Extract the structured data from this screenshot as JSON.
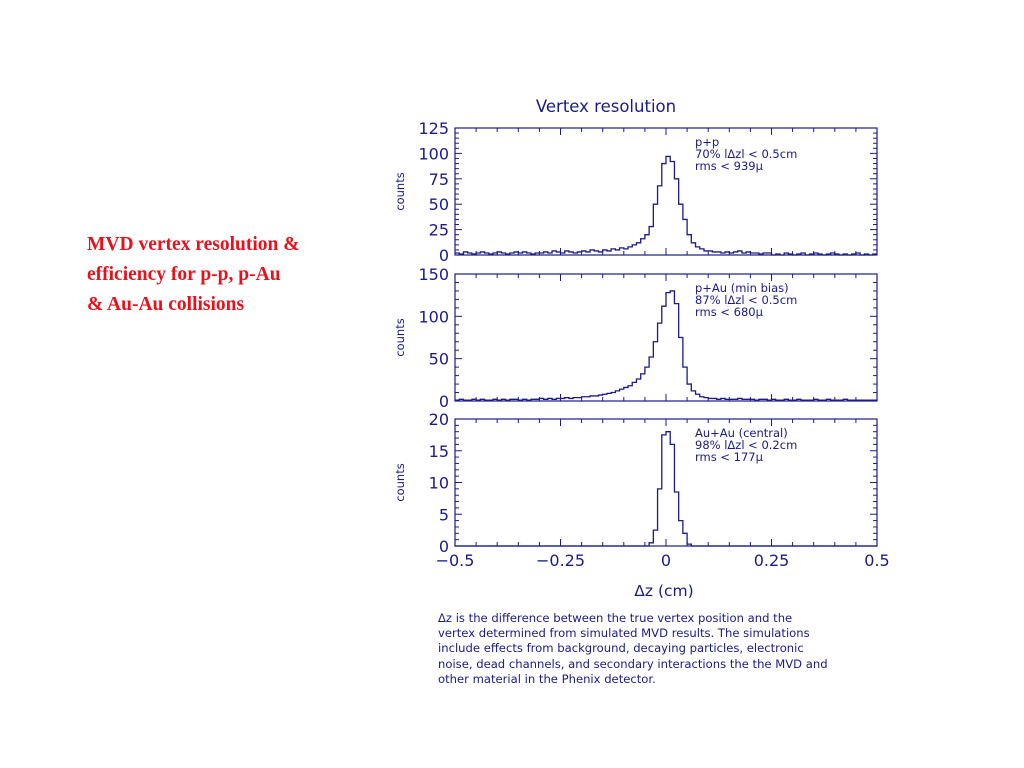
{
  "caption": {
    "lines": [
      "MVD vertex resolution &",
      "efficiency for p-p,  p-Au",
      "& Au-Au collisions"
    ],
    "color": "#e8111a"
  },
  "ink_color": "#1a1a8c",
  "description": {
    "lines": [
      "Δz is the difference between the true vertex position and the",
      "vertex determined from simulated MVD results. The simulations",
      "include effects from background, decaying particles, electronic",
      "noise, dead channels, and secondary interactions the the MVD and",
      "other material in the Phenix detector."
    ]
  },
  "chart_data": {
    "type": "line",
    "title": "Vertex resolution",
    "xlabel": "Δz (cm)",
    "xlim": [
      -0.5,
      0.5
    ],
    "xticks": [
      -0.5,
      -0.25,
      0,
      0.25,
      0.5
    ],
    "xtick_labels": [
      "−0.5",
      "−0.25",
      "0",
      "0.25",
      "0.5"
    ],
    "x": [
      -0.5,
      -0.49,
      -0.48,
      -0.47,
      -0.46,
      -0.45,
      -0.44,
      -0.43,
      -0.42,
      -0.41,
      -0.4,
      -0.39,
      -0.38,
      -0.37,
      -0.36,
      -0.35,
      -0.34,
      -0.33,
      -0.32,
      -0.31,
      -0.3,
      -0.29,
      -0.28,
      -0.27,
      -0.26,
      -0.25,
      -0.24,
      -0.23,
      -0.22,
      -0.21,
      -0.2,
      -0.19,
      -0.18,
      -0.17,
      -0.16,
      -0.15,
      -0.14,
      -0.13,
      -0.12,
      -0.11,
      -0.1,
      -0.09,
      -0.08,
      -0.07,
      -0.06,
      -0.05,
      -0.04,
      -0.03,
      -0.02,
      -0.01,
      0,
      0.01,
      0.02,
      0.03,
      0.04,
      0.05,
      0.06,
      0.07,
      0.08,
      0.09,
      0.1,
      0.11,
      0.12,
      0.13,
      0.14,
      0.15,
      0.16,
      0.17,
      0.18,
      0.19,
      0.2,
      0.21,
      0.22,
      0.23,
      0.24,
      0.25,
      0.26,
      0.27,
      0.28,
      0.29,
      0.3,
      0.31,
      0.32,
      0.33,
      0.34,
      0.35,
      0.36,
      0.37,
      0.38,
      0.39,
      0.4,
      0.41,
      0.42,
      0.43,
      0.44,
      0.45,
      0.46,
      0.47,
      0.48,
      0.49
    ],
    "panels": [
      {
        "ylabel": "counts",
        "ylim": [
          0,
          125
        ],
        "yticks": [
          0,
          25,
          50,
          75,
          100,
          125
        ],
        "legend": [
          "p+p",
          "70% lΔzl < 0.5cm",
          "rms < 939μ"
        ],
        "values": [
          2,
          1,
          3,
          2,
          1,
          2,
          3,
          2,
          1,
          2,
          3,
          2,
          1,
          2,
          3,
          2,
          3,
          2,
          1,
          2,
          2,
          3,
          2,
          4,
          3,
          2,
          4,
          3,
          2,
          3,
          4,
          3,
          5,
          4,
          3,
          5,
          4,
          6,
          5,
          7,
          6,
          8,
          10,
          12,
          16,
          20,
          28,
          50,
          68,
          90,
          97,
          92,
          75,
          50,
          35,
          20,
          12,
          8,
          6,
          4,
          4,
          3,
          3,
          2,
          3,
          2,
          3,
          4,
          2,
          3,
          2,
          2,
          1,
          2,
          2,
          0,
          1,
          0,
          2,
          1,
          0,
          1,
          2,
          0,
          1,
          2,
          1,
          0,
          1,
          2,
          1,
          0,
          1,
          0,
          1,
          2,
          0,
          1,
          0,
          1
        ]
      },
      {
        "ylabel": "counts",
        "ylim": [
          0,
          150
        ],
        "yticks": [
          0,
          50,
          100,
          150
        ],
        "legend": [
          "p+Au (min bias)",
          "87% lΔzl < 0.5cm",
          "rms < 680μ"
        ],
        "values": [
          1,
          2,
          1,
          1,
          2,
          1,
          2,
          1,
          1,
          2,
          1,
          2,
          1,
          2,
          2,
          1,
          2,
          1,
          2,
          2,
          3,
          2,
          3,
          2,
          3,
          3,
          4,
          3,
          4,
          4,
          5,
          5,
          6,
          6,
          7,
          8,
          9,
          10,
          12,
          14,
          16,
          18,
          22,
          26,
          32,
          40,
          52,
          70,
          92,
          112,
          128,
          130,
          115,
          75,
          40,
          20,
          12,
          8,
          5,
          4,
          3,
          3,
          2,
          3,
          2,
          2,
          2,
          3,
          2,
          2,
          2,
          1,
          2,
          2,
          1,
          2,
          1,
          1,
          2,
          1,
          1,
          2,
          1,
          1,
          1,
          2,
          1,
          1,
          2,
          1,
          1,
          1,
          2,
          1,
          1,
          1,
          1,
          1,
          1,
          1
        ]
      },
      {
        "ylabel": "counts",
        "ylim": [
          0,
          20
        ],
        "yticks": [
          0,
          5,
          10,
          15,
          20
        ],
        "legend": [
          "Au+Au (central)",
          "98% lΔzl < 0.2cm",
          "rms < 177μ"
        ],
        "values": [
          0,
          0,
          0,
          0,
          0,
          0,
          0,
          0,
          0,
          0,
          0,
          0,
          0,
          0,
          0,
          0,
          0,
          0,
          0,
          0,
          0,
          0,
          0,
          0,
          0,
          0,
          0,
          0,
          0,
          0,
          0,
          0,
          0,
          0,
          0,
          0,
          0,
          0,
          0,
          0,
          0,
          0,
          0,
          0,
          0,
          0,
          0.5,
          2.5,
          9,
          17.5,
          18,
          16,
          8.5,
          4,
          2,
          0.3,
          0,
          0,
          0,
          0,
          0,
          0,
          0,
          0,
          0,
          0,
          0,
          0,
          0,
          0,
          0,
          0,
          0,
          0,
          0,
          0,
          0,
          0,
          0,
          0,
          0,
          0,
          0,
          0,
          0,
          0,
          0,
          0,
          0,
          0,
          0,
          0,
          0,
          0,
          0,
          0,
          0,
          0,
          0,
          0
        ]
      }
    ]
  }
}
